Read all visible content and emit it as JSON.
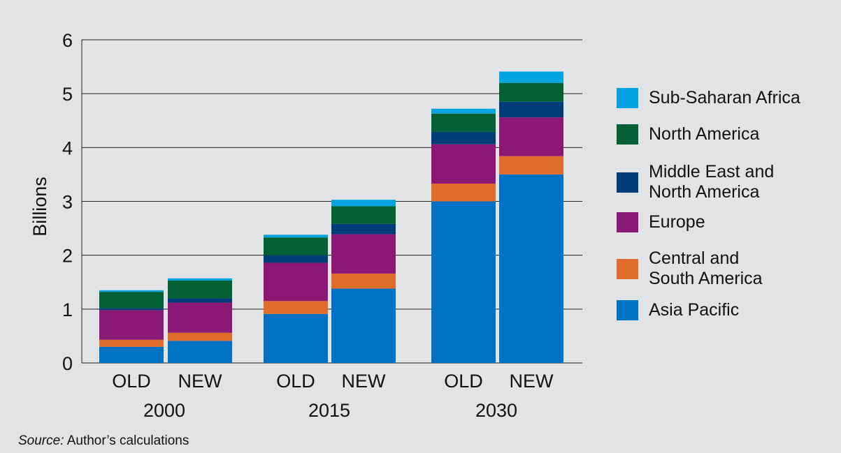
{
  "chart_data": {
    "type": "bar",
    "stacked": true,
    "ylabel": "Billions",
    "ylim": [
      0,
      6
    ],
    "yticks": [
      0,
      1,
      2,
      3,
      4,
      5,
      6
    ],
    "grid": true,
    "groups": [
      "2000",
      "2015",
      "2030"
    ],
    "bar_labels": [
      "OLD",
      "NEW",
      "OLD",
      "NEW",
      "OLD",
      "NEW"
    ],
    "categories": [
      "2000 OLD",
      "2000 NEW",
      "2015 OLD",
      "2015 NEW",
      "2030 OLD",
      "2030 NEW"
    ],
    "series": [
      {
        "name": "Asia Pacific",
        "color": "#0072c6",
        "values": [
          0.3,
          0.41,
          0.91,
          1.38,
          3.0,
          3.5
        ]
      },
      {
        "name": "Central and\nSouth America",
        "color": "#e06c2b",
        "values": [
          0.13,
          0.15,
          0.24,
          0.28,
          0.33,
          0.34
        ]
      },
      {
        "name": "Europe",
        "color": "#8a1874",
        "values": [
          0.55,
          0.56,
          0.71,
          0.73,
          0.73,
          0.72
        ]
      },
      {
        "name": "Middle East and\nNorth America",
        "color": "#003c7a",
        "values": [
          0.04,
          0.08,
          0.14,
          0.19,
          0.23,
          0.29
        ]
      },
      {
        "name": "North America",
        "color": "#046034",
        "values": [
          0.3,
          0.33,
          0.33,
          0.33,
          0.34,
          0.35
        ]
      },
      {
        "name": "Sub-Saharan Africa",
        "color": "#05a3e1",
        "values": [
          0.03,
          0.04,
          0.05,
          0.12,
          0.09,
          0.21
        ]
      }
    ],
    "legend_position": "right",
    "legend_order": [
      "Sub-Saharan Africa",
      "North America",
      "Middle East and\nNorth America",
      "Europe",
      "Central and\nSouth America",
      "Asia Pacific"
    ]
  },
  "source": {
    "label": "Source:",
    "text": " Author’s calculations"
  }
}
